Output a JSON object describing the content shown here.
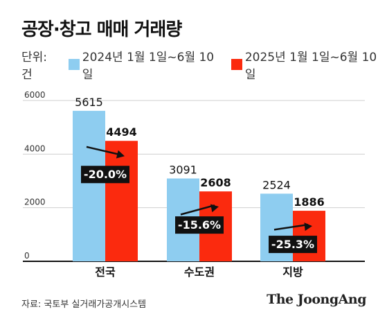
{
  "title": "공장·창고 매매 거래량",
  "unit_label": "단위: 건",
  "source": "자료: 국토부 실거래가공개시스템",
  "brand": "The JoongAng",
  "colors": {
    "series_2024": "#8ecdf0",
    "series_2025": "#fb2a0e",
    "change_box": "#111111",
    "change_text": "#ffffff",
    "grid": "#cfcfcf"
  },
  "chart_data": {
    "type": "bar",
    "title": "공장·창고 매매 거래량",
    "ylabel": "",
    "xlabel": "",
    "ylim": [
      0,
      6000
    ],
    "yticks": [
      0,
      2000,
      4000,
      6000
    ],
    "categories": [
      "전국",
      "수도권",
      "지방"
    ],
    "series": [
      {
        "name": "2024년 1월 1일~6월 10일",
        "values": [
          5615,
          3091,
          2524
        ]
      },
      {
        "name": "2025년 1월 1일~6월 10일",
        "values": [
          4494,
          2608,
          1886
        ]
      }
    ],
    "changes": [
      "-20.0%",
      "-15.6%",
      "-25.3%"
    ],
    "grid": true,
    "legend_position": "top-left"
  }
}
